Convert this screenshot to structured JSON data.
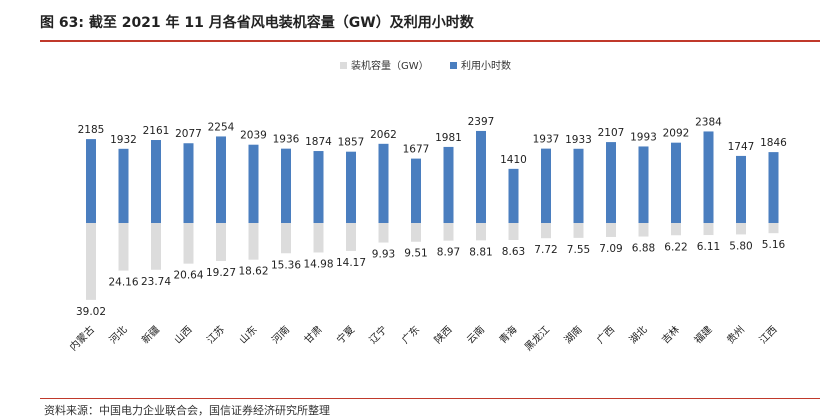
{
  "title": "图 63:  截至 2021 年 11 月各省风电装机容量（GW）及利用小时数",
  "source": "资料来源：中国电力企业联合会，国信证券经济研究所整理",
  "colors": {
    "hours": "#4a7ebf",
    "capacity": "#dcdcdc",
    "rule": "#c0392b"
  },
  "chart_data": {
    "type": "bar",
    "categories": [
      "内蒙古",
      "河北",
      "新疆",
      "山西",
      "江苏",
      "山东",
      "河南",
      "甘肃",
      "宁夏",
      "辽宁",
      "广东",
      "陕西",
      "云南",
      "青海",
      "黑龙江",
      "湖南",
      "广西",
      "湖北",
      "吉林",
      "福建",
      "贵州",
      "江西"
    ],
    "series": [
      {
        "name": "装机容量（GW）",
        "values": [
          39.02,
          24.16,
          23.74,
          20.64,
          19.27,
          18.62,
          15.36,
          14.98,
          14.17,
          9.93,
          9.51,
          8.97,
          8.81,
          8.63,
          7.72,
          7.55,
          7.09,
          6.88,
          6.22,
          6.11,
          5.8,
          5.16
        ]
      },
      {
        "name": "利用小时数",
        "values": [
          2185,
          1932,
          2161,
          2077,
          2254,
          2039,
          1936,
          1874,
          1857,
          2062,
          1677,
          1981,
          2397,
          1410,
          1937,
          1933,
          2107,
          1993,
          2092,
          2384,
          1747,
          1846
        ]
      }
    ],
    "legend_position": "top-center",
    "grid": false
  }
}
